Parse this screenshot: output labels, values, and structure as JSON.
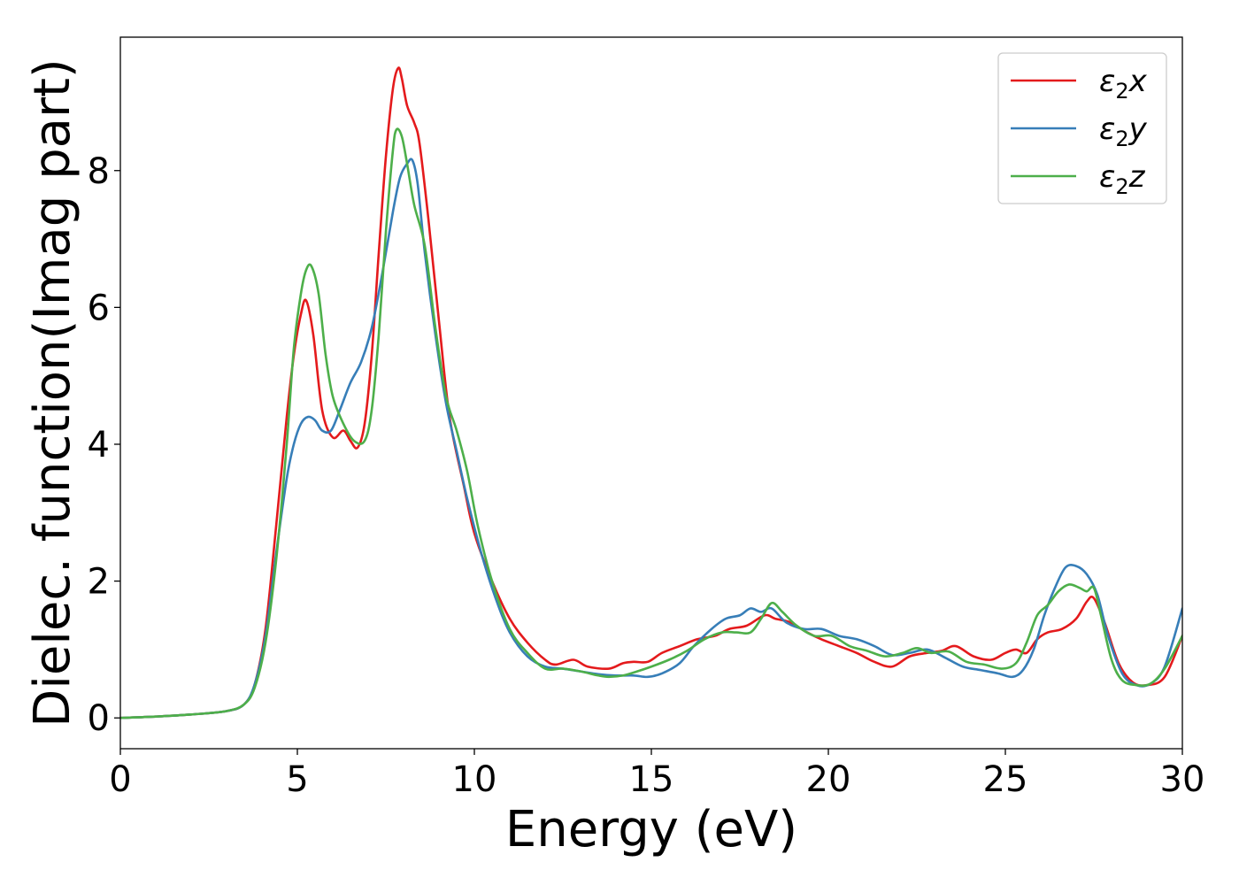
{
  "chart_data": {
    "type": "line",
    "xlabel": "Energy (eV)",
    "ylabel": "Dielec. function(Imag part)",
    "xlim": [
      0,
      30
    ],
    "ylim": [
      -0.45,
      9.95
    ],
    "xticks": [
      0,
      5,
      10,
      15,
      20,
      25,
      30
    ],
    "yticks": [
      0,
      2,
      4,
      6,
      8
    ],
    "grid": false,
    "legend_position": "top-right",
    "series": [
      {
        "name": "ε₂x",
        "name_main": "ε",
        "name_sub": "2",
        "name_tail": "x",
        "color": "#e41a1c",
        "x": [
          0,
          1,
          2,
          3,
          3.5,
          3.8,
          4.1,
          4.4,
          4.7,
          4.9,
          5.1,
          5.25,
          5.45,
          5.7,
          6.0,
          6.3,
          6.5,
          6.7,
          6.9,
          7.1,
          7.3,
          7.5,
          7.7,
          7.85,
          7.95,
          8.1,
          8.3,
          8.45,
          8.7,
          9.0,
          9.3,
          9.7,
          10.0,
          10.5,
          11.0,
          11.5,
          12.0,
          12.3,
          12.8,
          13.2,
          13.8,
          14.2,
          14.5,
          14.9,
          15.3,
          15.8,
          16.3,
          16.8,
          17.2,
          17.7,
          18.2,
          18.5,
          18.9,
          19.4,
          19.8,
          20.3,
          20.8,
          21.3,
          21.8,
          22.3,
          22.8,
          23.2,
          23.6,
          24.1,
          24.6,
          25.0,
          25.3,
          25.6,
          25.9,
          26.2,
          26.6,
          27.0,
          27.3,
          27.5,
          27.8,
          28.2,
          28.6,
          29.0,
          29.5,
          30.0
        ],
        "y": [
          0.0,
          0.02,
          0.05,
          0.1,
          0.2,
          0.5,
          1.3,
          2.8,
          4.4,
          5.3,
          5.9,
          6.1,
          5.6,
          4.5,
          4.1,
          4.2,
          4.05,
          3.95,
          4.3,
          5.3,
          6.8,
          8.2,
          9.2,
          9.5,
          9.35,
          8.95,
          8.7,
          8.4,
          7.3,
          5.8,
          4.4,
          3.4,
          2.7,
          2.0,
          1.45,
          1.1,
          0.85,
          0.78,
          0.85,
          0.75,
          0.72,
          0.8,
          0.82,
          0.82,
          0.95,
          1.05,
          1.15,
          1.2,
          1.3,
          1.35,
          1.5,
          1.45,
          1.4,
          1.25,
          1.15,
          1.05,
          0.95,
          0.82,
          0.75,
          0.9,
          0.95,
          0.98,
          1.05,
          0.9,
          0.85,
          0.95,
          1.0,
          0.95,
          1.15,
          1.25,
          1.3,
          1.45,
          1.7,
          1.75,
          1.4,
          0.8,
          0.52,
          0.48,
          0.6,
          1.2
        ]
      },
      {
        "name": "ε₂y",
        "name_main": "ε",
        "name_sub": "2",
        "name_tail": "y",
        "color": "#377eb8",
        "x": [
          0,
          1,
          2,
          3,
          3.5,
          3.8,
          4.1,
          4.4,
          4.7,
          4.9,
          5.1,
          5.3,
          5.5,
          5.7,
          5.95,
          6.2,
          6.5,
          6.8,
          7.1,
          7.4,
          7.7,
          7.9,
          8.1,
          8.25,
          8.4,
          8.6,
          8.9,
          9.2,
          9.5,
          9.8,
          10.2,
          10.6,
          11.0,
          11.5,
          12.0,
          12.5,
          13.0,
          13.5,
          14.0,
          14.5,
          14.9,
          15.3,
          15.8,
          16.2,
          16.7,
          17.1,
          17.5,
          17.8,
          18.1,
          18.4,
          18.8,
          19.3,
          19.8,
          20.3,
          20.8,
          21.3,
          21.8,
          22.3,
          22.8,
          23.3,
          23.8,
          24.3,
          24.8,
          25.2,
          25.5,
          25.8,
          26.1,
          26.4,
          26.7,
          27.0,
          27.3,
          27.6,
          27.9,
          28.3,
          28.7,
          29.1,
          29.5,
          30.0
        ],
        "y": [
          0.0,
          0.02,
          0.05,
          0.1,
          0.2,
          0.5,
          1.2,
          2.4,
          3.5,
          4.0,
          4.3,
          4.4,
          4.35,
          4.2,
          4.2,
          4.5,
          4.9,
          5.2,
          5.7,
          6.5,
          7.4,
          7.9,
          8.1,
          8.15,
          7.8,
          6.8,
          5.6,
          4.6,
          3.9,
          3.2,
          2.4,
          1.75,
          1.25,
          0.9,
          0.75,
          0.72,
          0.68,
          0.64,
          0.62,
          0.62,
          0.6,
          0.65,
          0.8,
          1.05,
          1.3,
          1.45,
          1.5,
          1.6,
          1.55,
          1.6,
          1.4,
          1.3,
          1.3,
          1.2,
          1.15,
          1.05,
          0.92,
          0.95,
          1.0,
          0.88,
          0.75,
          0.7,
          0.65,
          0.6,
          0.7,
          1.0,
          1.5,
          1.9,
          2.2,
          2.22,
          2.1,
          1.8,
          1.2,
          0.65,
          0.48,
          0.5,
          0.75,
          1.6
        ]
      },
      {
        "name": "ε₂z",
        "name_main": "ε",
        "name_sub": "2",
        "name_tail": "z",
        "color": "#4daf4a",
        "x": [
          0,
          1,
          2,
          3,
          3.5,
          3.8,
          4.1,
          4.4,
          4.7,
          4.9,
          5.1,
          5.25,
          5.4,
          5.6,
          5.8,
          6.0,
          6.3,
          6.6,
          6.9,
          7.1,
          7.3,
          7.5,
          7.7,
          7.8,
          7.95,
          8.1,
          8.3,
          8.6,
          8.9,
          9.2,
          9.5,
          9.8,
          10.1,
          10.5,
          11.0,
          11.5,
          12.0,
          12.5,
          13.0,
          13.5,
          13.8,
          14.2,
          14.6,
          15.0,
          15.5,
          16.0,
          16.5,
          17.0,
          17.4,
          17.8,
          18.1,
          18.4,
          18.7,
          19.1,
          19.6,
          20.1,
          20.6,
          21.1,
          21.6,
          22.1,
          22.5,
          22.9,
          23.4,
          23.9,
          24.4,
          24.9,
          25.3,
          25.6,
          25.9,
          26.2,
          26.5,
          26.8,
          27.1,
          27.3,
          27.5,
          27.7,
          28.0,
          28.3,
          28.7,
          29.1,
          29.5,
          30.0
        ],
        "y": [
          0.0,
          0.02,
          0.05,
          0.1,
          0.2,
          0.45,
          1.1,
          2.3,
          4.0,
          5.4,
          6.2,
          6.55,
          6.6,
          6.2,
          5.3,
          4.7,
          4.3,
          4.05,
          4.05,
          4.5,
          5.6,
          7.1,
          8.3,
          8.6,
          8.5,
          8.1,
          7.5,
          6.9,
          5.7,
          4.7,
          4.2,
          3.6,
          2.8,
          2.0,
          1.3,
          0.95,
          0.72,
          0.72,
          0.68,
          0.62,
          0.6,
          0.62,
          0.68,
          0.75,
          0.85,
          0.98,
          1.15,
          1.25,
          1.25,
          1.25,
          1.45,
          1.68,
          1.55,
          1.35,
          1.2,
          1.2,
          1.05,
          0.98,
          0.9,
          0.95,
          1.02,
          0.95,
          0.97,
          0.82,
          0.78,
          0.72,
          0.8,
          1.1,
          1.5,
          1.65,
          1.85,
          1.95,
          1.9,
          1.85,
          1.9,
          1.5,
          0.85,
          0.55,
          0.48,
          0.5,
          0.72,
          1.2
        ]
      }
    ]
  }
}
